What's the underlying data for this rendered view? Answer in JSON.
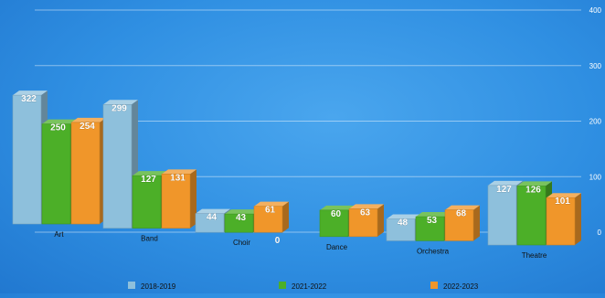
{
  "chart_data": {
    "type": "bar",
    "title": "",
    "xlabel": "",
    "ylabel": "",
    "categories": [
      "Art",
      "Band",
      "Choir",
      "Dance",
      "Orchestra",
      "Theatre"
    ],
    "series": [
      {
        "name": "2018-2019",
        "values": [
          322,
          299,
          44,
          0,
          48,
          127
        ],
        "value_labels": [
          "322",
          "299",
          "44",
          "0",
          "48",
          "127"
        ],
        "color": "#8ec0dc"
      },
      {
        "name": "2021-2022",
        "values": [
          250,
          127,
          43,
          60,
          53,
          126
        ],
        "value_labels": [
          "250",
          "127",
          "43",
          "60",
          "53",
          "126"
        ],
        "color": "#4caf28"
      },
      {
        "name": "2022-2023",
        "values": [
          254,
          131,
          61,
          63,
          68,
          101
        ],
        "value_labels": [
          "254",
          "131",
          "61",
          "63",
          "68",
          "101"
        ],
        "color": "#f0962a"
      }
    ],
    "ylim": [
      0,
      400
    ],
    "y_ticks": [
      0,
      100,
      200,
      300,
      400
    ],
    "y_tick_labels": [
      "0",
      "100",
      "200",
      "300",
      "400"
    ],
    "grid": true,
    "legend": "bottom",
    "style": "3d"
  }
}
